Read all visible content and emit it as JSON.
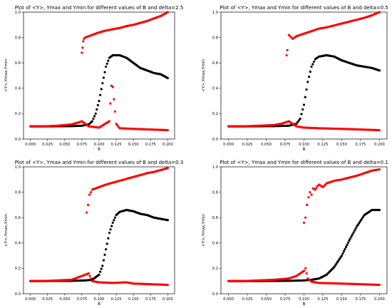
{
  "chart_data": [
    {
      "type": "scatter",
      "title": "Plot of <Y>, Ymax and Ymin for different values of B and delta=2.5",
      "xlabel": "B",
      "ylabel": "<Y>,Ymax,Ymin",
      "xlim": [
        -0.01,
        0.21
      ],
      "ylim": [
        0.0,
        1.0
      ],
      "x_ticks": [
        "0.000",
        "0.025",
        "0.050",
        "0.075",
        "0.100",
        "0.125",
        "0.150",
        "0.175",
        "0.200"
      ],
      "y_ticks": [
        "0.0",
        "0.2",
        "0.4",
        "0.6",
        "0.8",
        "1.0"
      ],
      "grid": false,
      "series": [
        {
          "color": "#ff0000",
          "points": [
            [
              0.075,
              0.68
            ],
            [
              0.076,
              0.72
            ],
            [
              0.077,
              0.77
            ],
            [
              0.078,
              0.79
            ],
            [
              0.08,
              0.8
            ],
            [
              0.085,
              0.81
            ],
            [
              0.09,
              0.82
            ],
            [
              0.1,
              0.84
            ],
            [
              0.11,
              0.855
            ],
            [
              0.12,
              0.865
            ],
            [
              0.13,
              0.875
            ],
            [
              0.14,
              0.89
            ],
            [
              0.15,
              0.9
            ],
            [
              0.16,
              0.915
            ],
            [
              0.17,
              0.93
            ],
            [
              0.18,
              0.95
            ],
            [
              0.19,
              0.97
            ],
            [
              0.2,
              1.0
            ]
          ]
        },
        {
          "color": "#000000",
          "points": [
            [
              0.0,
              0.1
            ],
            [
              0.02,
              0.1
            ],
            [
              0.04,
              0.101
            ],
            [
              0.06,
              0.102
            ],
            [
              0.075,
              0.105
            ],
            [
              0.085,
              0.115
            ],
            [
              0.09,
              0.14
            ],
            [
              0.095,
              0.2
            ],
            [
              0.1,
              0.3
            ],
            [
              0.105,
              0.44
            ],
            [
              0.11,
              0.57
            ],
            [
              0.115,
              0.64
            ],
            [
              0.12,
              0.66
            ],
            [
              0.13,
              0.66
            ],
            [
              0.14,
              0.64
            ],
            [
              0.15,
              0.6
            ],
            [
              0.16,
              0.56
            ],
            [
              0.17,
              0.54
            ],
            [
              0.18,
              0.52
            ],
            [
              0.19,
              0.51
            ],
            [
              0.2,
              0.48
            ]
          ]
        },
        {
          "color": "#ff0000",
          "points": [
            [
              0.0,
              0.1
            ],
            [
              0.02,
              0.1
            ],
            [
              0.04,
              0.105
            ],
            [
              0.06,
              0.115
            ],
            [
              0.07,
              0.13
            ],
            [
              0.075,
              0.14
            ],
            [
              0.085,
              0.1
            ],
            [
              0.1,
              0.09
            ],
            [
              0.115,
              0.14
            ],
            [
              0.118,
              0.42
            ],
            [
              0.12,
              0.41
            ],
            [
              0.125,
              0.12
            ],
            [
              0.13,
              0.085
            ],
            [
              0.15,
              0.08
            ],
            [
              0.175,
              0.075
            ],
            [
              0.2,
              0.07
            ]
          ]
        }
      ]
    },
    {
      "type": "scatter",
      "title": "Plot of <Y>, Ymax and Ymin for different values of B and delta=0.5",
      "xlabel": "B",
      "ylabel": "<Y>,Ymax,Ymin",
      "xlim": [
        -0.01,
        0.21
      ],
      "ylim": [
        0.0,
        1.0
      ],
      "x_ticks": [
        "0.000",
        "0.025",
        "0.050",
        "0.075",
        "0.100",
        "0.125",
        "0.150",
        "0.175",
        "0.200"
      ],
      "y_ticks": [
        "0.0",
        "0.2",
        "0.4",
        "0.6",
        "0.8",
        "1.0"
      ],
      "grid": false,
      "series": [
        {
          "color": "#ff0000",
          "points": [
            [
              0.077,
              0.66
            ],
            [
              0.078,
              0.7
            ],
            [
              0.08,
              0.82
            ],
            [
              0.085,
              0.79
            ],
            [
              0.09,
              0.81
            ],
            [
              0.1,
              0.83
            ],
            [
              0.11,
              0.85
            ],
            [
              0.12,
              0.87
            ],
            [
              0.13,
              0.88
            ],
            [
              0.14,
              0.895
            ],
            [
              0.15,
              0.91
            ],
            [
              0.16,
              0.925
            ],
            [
              0.17,
              0.94
            ],
            [
              0.18,
              0.955
            ],
            [
              0.19,
              0.975
            ],
            [
              0.2,
              1.0
            ]
          ]
        },
        {
          "color": "#000000",
          "points": [
            [
              0.0,
              0.1
            ],
            [
              0.02,
              0.1
            ],
            [
              0.04,
              0.101
            ],
            [
              0.06,
              0.102
            ],
            [
              0.08,
              0.105
            ],
            [
              0.09,
              0.12
            ],
            [
              0.095,
              0.16
            ],
            [
              0.1,
              0.27
            ],
            [
              0.105,
              0.45
            ],
            [
              0.11,
              0.57
            ],
            [
              0.115,
              0.63
            ],
            [
              0.12,
              0.65
            ],
            [
              0.13,
              0.66
            ],
            [
              0.14,
              0.65
            ],
            [
              0.15,
              0.62
            ],
            [
              0.16,
              0.6
            ],
            [
              0.17,
              0.58
            ],
            [
              0.18,
              0.57
            ],
            [
              0.19,
              0.56
            ],
            [
              0.2,
              0.54
            ]
          ]
        },
        {
          "color": "#ff0000",
          "points": [
            [
              0.0,
              0.1
            ],
            [
              0.02,
              0.1
            ],
            [
              0.04,
              0.105
            ],
            [
              0.06,
              0.11
            ],
            [
              0.07,
              0.12
            ],
            [
              0.08,
              0.14
            ],
            [
              0.09,
              0.1
            ],
            [
              0.1,
              0.09
            ],
            [
              0.12,
              0.085
            ],
            [
              0.15,
              0.08
            ],
            [
              0.175,
              0.075
            ],
            [
              0.2,
              0.07
            ]
          ]
        }
      ]
    },
    {
      "type": "scatter",
      "title": "Plot of <Y>, Ymax and Ymin for different values of B and delta=0.3",
      "xlabel": "B",
      "ylabel": "<Y>,Ymax,Ymin",
      "xlim": [
        -0.01,
        0.21
      ],
      "ylim": [
        0.0,
        1.0
      ],
      "x_ticks": [
        "0.000",
        "0.025",
        "0.050",
        "0.075",
        "0.100",
        "0.125",
        "0.150",
        "0.175",
        "0.200"
      ],
      "y_ticks": [
        "0.0",
        "0.2",
        "0.4",
        "0.6",
        "0.8",
        "1.0"
      ],
      "grid": false,
      "series": [
        {
          "color": "#ff0000",
          "points": [
            [
              0.082,
              0.64
            ],
            [
              0.084,
              0.7
            ],
            [
              0.086,
              0.78
            ],
            [
              0.088,
              0.8
            ],
            [
              0.09,
              0.82
            ],
            [
              0.1,
              0.84
            ],
            [
              0.11,
              0.86
            ],
            [
              0.12,
              0.875
            ],
            [
              0.13,
              0.89
            ],
            [
              0.14,
              0.905
            ],
            [
              0.15,
              0.92
            ],
            [
              0.16,
              0.935
            ],
            [
              0.17,
              0.95
            ],
            [
              0.18,
              0.96
            ],
            [
              0.19,
              0.975
            ],
            [
              0.2,
              0.99
            ]
          ]
        },
        {
          "color": "#000000",
          "points": [
            [
              0.0,
              0.1
            ],
            [
              0.02,
              0.1
            ],
            [
              0.04,
              0.101
            ],
            [
              0.06,
              0.102
            ],
            [
              0.08,
              0.105
            ],
            [
              0.09,
              0.11
            ],
            [
              0.1,
              0.15
            ],
            [
              0.105,
              0.22
            ],
            [
              0.11,
              0.35
            ],
            [
              0.115,
              0.48
            ],
            [
              0.12,
              0.56
            ],
            [
              0.125,
              0.62
            ],
            [
              0.13,
              0.645
            ],
            [
              0.14,
              0.66
            ],
            [
              0.15,
              0.65
            ],
            [
              0.16,
              0.63
            ],
            [
              0.17,
              0.62
            ],
            [
              0.18,
              0.6
            ],
            [
              0.19,
              0.59
            ],
            [
              0.2,
              0.58
            ]
          ]
        },
        {
          "color": "#ff0000",
          "points": [
            [
              0.0,
              0.1
            ],
            [
              0.02,
              0.1
            ],
            [
              0.04,
              0.105
            ],
            [
              0.06,
              0.11
            ],
            [
              0.07,
              0.13
            ],
            [
              0.08,
              0.15
            ],
            [
              0.085,
              0.16
            ],
            [
              0.09,
              0.1
            ],
            [
              0.1,
              0.09
            ],
            [
              0.12,
              0.085
            ],
            [
              0.14,
              0.09
            ],
            [
              0.15,
              0.08
            ],
            [
              0.175,
              0.075
            ],
            [
              0.2,
              0.07
            ]
          ]
        }
      ]
    },
    {
      "type": "scatter",
      "title": "Plot of <Y>, Ymax and Ymin for different values of B and delta=0.1",
      "xlabel": "B",
      "ylabel": "<Y>,Ymax,Ymin",
      "xlim": [
        -0.01,
        0.21
      ],
      "ylim": [
        0.0,
        1.0
      ],
      "x_ticks": [
        "0.000",
        "0.025",
        "0.050",
        "0.075",
        "0.100",
        "0.125",
        "0.150",
        "0.175",
        "0.200"
      ],
      "y_ticks": [
        "0.0",
        "0.2",
        "0.4",
        "0.6",
        "0.8",
        "1.0"
      ],
      "grid": false,
      "series": [
        {
          "color": "#ff0000",
          "points": [
            [
              0.1,
              0.56
            ],
            [
              0.102,
              0.6
            ],
            [
              0.104,
              0.7
            ],
            [
              0.106,
              0.76
            ],
            [
              0.108,
              0.8
            ],
            [
              0.11,
              0.78
            ],
            [
              0.112,
              0.83
            ],
            [
              0.115,
              0.82
            ],
            [
              0.118,
              0.85
            ],
            [
              0.12,
              0.86
            ],
            [
              0.125,
              0.84
            ],
            [
              0.13,
              0.87
            ],
            [
              0.14,
              0.89
            ],
            [
              0.15,
              0.9
            ],
            [
              0.16,
              0.915
            ],
            [
              0.17,
              0.93
            ],
            [
              0.18,
              0.95
            ],
            [
              0.19,
              0.97
            ],
            [
              0.2,
              0.98
            ]
          ]
        },
        {
          "color": "#000000",
          "points": [
            [
              0.0,
              0.1
            ],
            [
              0.02,
              0.1
            ],
            [
              0.04,
              0.1
            ],
            [
              0.06,
              0.101
            ],
            [
              0.08,
              0.102
            ],
            [
              0.1,
              0.105
            ],
            [
              0.11,
              0.11
            ],
            [
              0.12,
              0.12
            ],
            [
              0.13,
              0.15
            ],
            [
              0.14,
              0.21
            ],
            [
              0.15,
              0.3
            ],
            [
              0.16,
              0.42
            ],
            [
              0.17,
              0.53
            ],
            [
              0.18,
              0.62
            ],
            [
              0.19,
              0.66
            ],
            [
              0.2,
              0.66
            ]
          ]
        },
        {
          "color": "#ff0000",
          "points": [
            [
              0.0,
              0.1
            ],
            [
              0.02,
              0.1
            ],
            [
              0.04,
              0.105
            ],
            [
              0.06,
              0.11
            ],
            [
              0.08,
              0.12
            ],
            [
              0.09,
              0.14
            ],
            [
              0.1,
              0.18
            ],
            [
              0.102,
              0.2
            ],
            [
              0.105,
              0.12
            ],
            [
              0.11,
              0.095
            ],
            [
              0.12,
              0.085
            ],
            [
              0.15,
              0.08
            ],
            [
              0.175,
              0.075
            ],
            [
              0.2,
              0.07
            ]
          ]
        }
      ]
    }
  ]
}
